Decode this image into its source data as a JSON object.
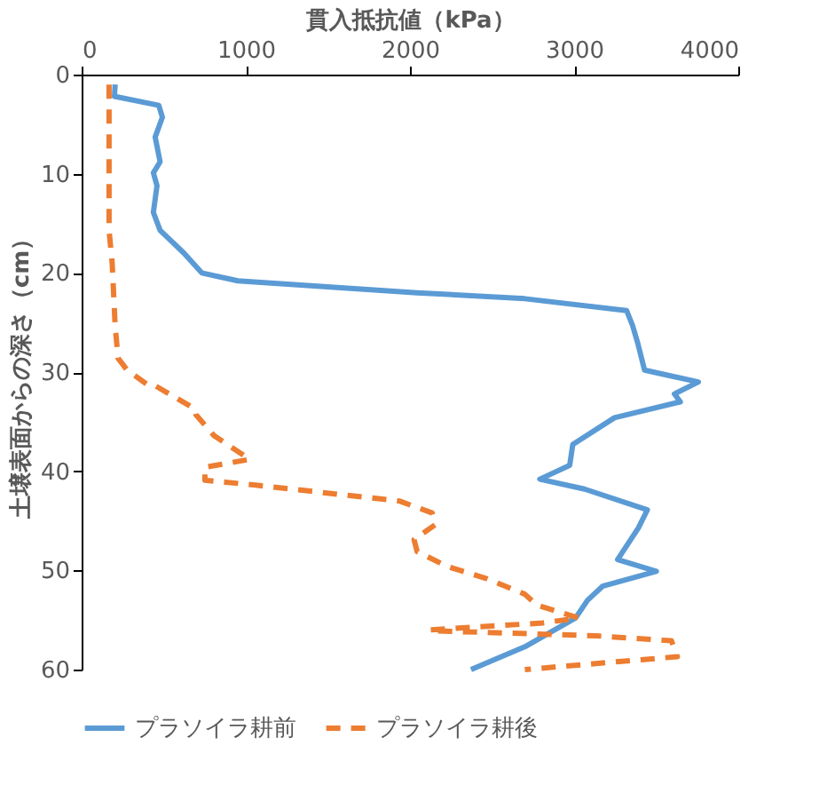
{
  "chart_data": {
    "type": "line",
    "xlabel": "貫入抵抗値（kPa）",
    "ylabel": "土壌表面からの深さ（cm）",
    "xlim": [
      0,
      4000
    ],
    "xticks": [
      0,
      1000,
      2000,
      3000,
      4000
    ],
    "ylim": [
      60,
      0
    ],
    "yticks": [
      0,
      10,
      20,
      30,
      40,
      50,
      60
    ],
    "grid": false,
    "legend": "bottom",
    "marker": "none",
    "series": [
      {
        "name": "プラソイラ耕前",
        "color": "#5b9bd5",
        "line_style": "solid",
        "x": [
          204,
          200,
          470,
          492,
          448,
          478,
          437,
          459,
          437,
          478,
          623,
          732,
          951,
          1497,
          2044,
          2700,
          3320,
          3356,
          3388,
          3429,
          3757,
          3611,
          3647,
          3246,
          2992,
          2973,
          2791,
          3064,
          3446,
          3392,
          3265,
          3501,
          3173,
          3082,
          3009,
          2700,
          2372
        ],
        "values": [
          1.0,
          2.2,
          3.1,
          4.3,
          6.3,
          8.8,
          9.9,
          11.2,
          13.9,
          15.7,
          18.0,
          20.0,
          20.8,
          21.4,
          22.0,
          22.6,
          23.8,
          25.3,
          27.1,
          29.8,
          31.0,
          32.2,
          33.0,
          34.6,
          37.3,
          39.4,
          40.8,
          41.8,
          43.9,
          45.7,
          48.9,
          50.1,
          51.6,
          53.0,
          54.8,
          57.7,
          60.0
        ]
      },
      {
        "name": "プラソイラ耕後",
        "color": "#ed7d31",
        "line_style": "dashed",
        "x": [
          167,
          167,
          167,
          186,
          204,
          222,
          277,
          404,
          441,
          689,
          696,
          806,
          1024,
          751,
          751,
          1060,
          1607,
          1935,
          2135,
          2153,
          2025,
          2044,
          2226,
          2463,
          2700,
          2773,
          3027,
          2809,
          2117,
          2160,
          3137,
          3593,
          3629,
          2700
        ],
        "values": [
          1.0,
          4.3,
          15.7,
          19.0,
          25.3,
          28.6,
          29.8,
          31.3,
          31.3,
          33.7,
          34.3,
          36.4,
          38.8,
          39.6,
          40.9,
          41.4,
          42.4,
          43.0,
          44.2,
          45.4,
          46.9,
          48.1,
          49.6,
          50.8,
          52.4,
          53.5,
          54.8,
          55.3,
          56.0,
          56.1,
          56.6,
          57.1,
          58.7,
          60.0
        ]
      }
    ]
  }
}
